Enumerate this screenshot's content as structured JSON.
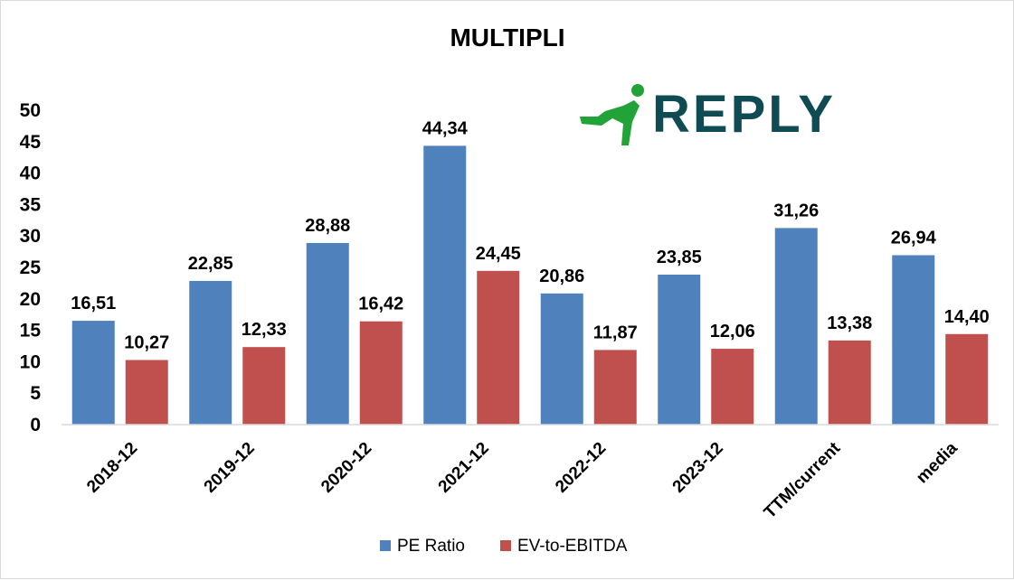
{
  "chart_data": {
    "type": "bar",
    "title": "MULTIPLI",
    "categories": [
      "2018-12",
      "2019-12",
      "2020-12",
      "2021-12",
      "2022-12",
      "2023-12",
      "TTM/current",
      "media"
    ],
    "series": [
      {
        "name": "PE Ratio",
        "color": "#4f81bd",
        "values": [
          16.51,
          22.85,
          28.88,
          44.34,
          20.86,
          23.85,
          31.26,
          26.94
        ],
        "labels": [
          "16,51",
          "22,85",
          "28,88",
          "44,34",
          "20,86",
          "23,85",
          "31,26",
          "26,94"
        ]
      },
      {
        "name": "EV-to-EBITDA",
        "color": "#c0504d",
        "values": [
          10.27,
          12.33,
          16.42,
          24.45,
          11.87,
          12.06,
          13.38,
          14.4
        ],
        "labels": [
          "10,27",
          "12,33",
          "16,42",
          "24,45",
          "11,87",
          "12,06",
          "13,38",
          "14,40"
        ]
      }
    ],
    "ylim": [
      0,
      50
    ],
    "yticks": [
      0,
      5,
      10,
      15,
      20,
      25,
      30,
      35,
      40,
      45,
      50
    ],
    "grid": false,
    "legend_position": "bottom"
  },
  "logo": {
    "text": "REPLY",
    "text_color": "#0e4b52",
    "icon": "running-figure-icon",
    "icon_color": "#22a33a"
  }
}
